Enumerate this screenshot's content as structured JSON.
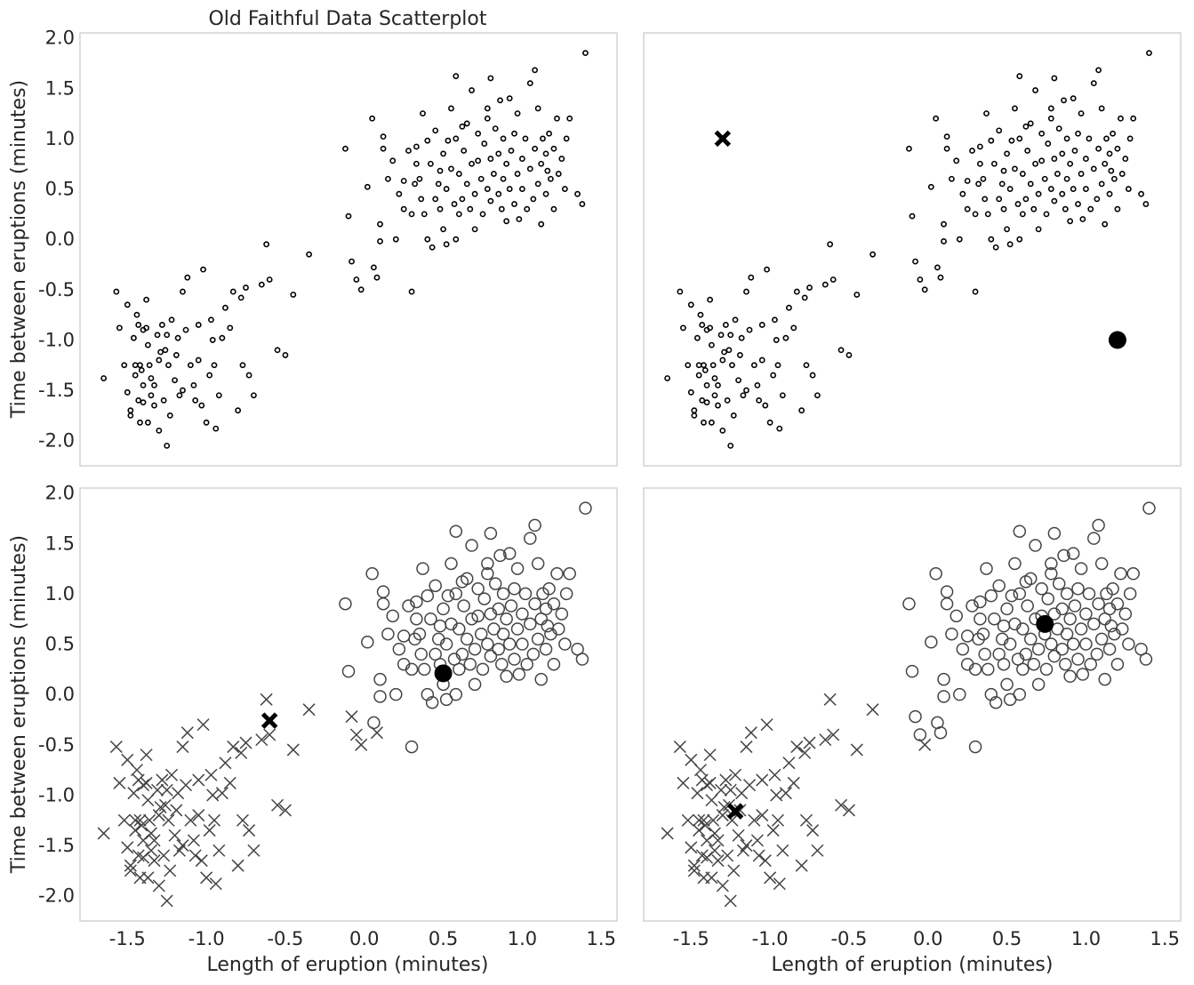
{
  "figure": {
    "title": "Old Faithful Data Scatterplot",
    "xlabel": "Length of eruption (minutes)",
    "ylabel": "Time between eruptions (minutes)"
  },
  "chart_data": [
    {
      "type": "scatter",
      "panel": "top-left",
      "title": "Old Faithful Data Scatterplot",
      "xlabel": "",
      "ylabel": "Time between eruptions (minutes)",
      "xlim": [
        -1.8,
        1.6
      ],
      "ylim": [
        -2.25,
        2.05
      ],
      "xticks": [],
      "yticks": [
        "2.0",
        "1.5",
        "1.0",
        "0.5",
        "0.0",
        "-0.5",
        "-1.0",
        "-1.5",
        "-2.0"
      ],
      "grid": false,
      "series": [
        {
          "marker": "small-circle",
          "points": [
            [
              -1.65,
              -1.38
            ],
            [
              -1.57,
              -0.52
            ],
            [
              -1.55,
              -0.88
            ],
            [
              -1.52,
              -1.25
            ],
            [
              -1.5,
              -0.65
            ],
            [
              -1.5,
              -1.52
            ],
            [
              -1.48,
              -1.7
            ],
            [
              -1.48,
              -1.75
            ],
            [
              -1.46,
              -0.98
            ],
            [
              -1.45,
              -1.25
            ],
            [
              -1.45,
              -1.35
            ],
            [
              -1.44,
              -0.75
            ],
            [
              -1.43,
              -0.85
            ],
            [
              -1.43,
              -1.6
            ],
            [
              -1.42,
              -1.82
            ],
            [
              -1.42,
              -1.25
            ],
            [
              -1.41,
              -1.3
            ],
            [
              -1.4,
              -1.45
            ],
            [
              -1.4,
              -1.62
            ],
            [
              -1.4,
              -0.9
            ],
            [
              -1.38,
              -0.6
            ],
            [
              -1.38,
              -0.88
            ],
            [
              -1.37,
              -1.05
            ],
            [
              -1.37,
              -1.82
            ],
            [
              -1.36,
              -1.25
            ],
            [
              -1.35,
              -1.38
            ],
            [
              -1.35,
              -1.55
            ],
            [
              -1.33,
              -1.45
            ],
            [
              -1.33,
              -1.65
            ],
            [
              -1.31,
              -0.95
            ],
            [
              -1.3,
              -1.2
            ],
            [
              -1.3,
              -1.9
            ],
            [
              -1.29,
              -1.12
            ],
            [
              -1.28,
              -0.85
            ],
            [
              -1.27,
              -1.6
            ],
            [
              -1.26,
              -1.1
            ],
            [
              -1.25,
              -2.05
            ],
            [
              -1.25,
              -0.95
            ],
            [
              -1.24,
              -1.25
            ],
            [
              -1.23,
              -1.75
            ],
            [
              -1.22,
              -0.8
            ],
            [
              -1.2,
              -1.4
            ],
            [
              -1.19,
              -1.15
            ],
            [
              -1.18,
              -0.98
            ],
            [
              -1.17,
              -1.55
            ],
            [
              -1.15,
              -1.5
            ],
            [
              -1.15,
              -0.52
            ],
            [
              -1.13,
              -0.9
            ],
            [
              -1.12,
              -0.38
            ],
            [
              -1.1,
              -1.25
            ],
            [
              -1.08,
              -1.45
            ],
            [
              -1.07,
              -1.6
            ],
            [
              -1.05,
              -0.85
            ],
            [
              -1.05,
              -1.2
            ],
            [
              -1.03,
              -1.65
            ],
            [
              -1.02,
              -0.3
            ],
            [
              -1.0,
              -1.82
            ],
            [
              -0.98,
              -1.35
            ],
            [
              -0.97,
              -0.8
            ],
            [
              -0.96,
              -1.0
            ],
            [
              -0.95,
              -1.25
            ],
            [
              -0.94,
              -1.88
            ],
            [
              -0.92,
              -1.55
            ],
            [
              -0.9,
              -0.98
            ],
            [
              -0.88,
              -0.68
            ],
            [
              -0.85,
              -0.88
            ],
            [
              -0.83,
              -0.52
            ],
            [
              -0.8,
              -1.7
            ],
            [
              -0.78,
              -0.58
            ],
            [
              -0.77,
              -1.25
            ],
            [
              -0.75,
              -0.48
            ],
            [
              -0.73,
              -1.35
            ],
            [
              -0.7,
              -1.55
            ],
            [
              -0.65,
              -0.45
            ],
            [
              -0.62,
              -0.05
            ],
            [
              -0.6,
              -0.4
            ],
            [
              -0.55,
              -1.1
            ],
            [
              -0.5,
              -1.15
            ],
            [
              -0.45,
              -0.55
            ],
            [
              -0.35,
              -0.15
            ],
            [
              -0.12,
              0.9
            ],
            [
              -0.1,
              0.23
            ],
            [
              -0.08,
              -0.22
            ],
            [
              -0.05,
              -0.4
            ],
            [
              -0.02,
              -0.5
            ],
            [
              0.02,
              0.52
            ],
            [
              0.05,
              1.2
            ],
            [
              0.08,
              -0.38
            ],
            [
              0.1,
              0.15
            ],
            [
              0.1,
              -0.02
            ],
            [
              0.12,
              1.02
            ],
            [
              0.12,
              0.9
            ],
            [
              0.15,
              0.6
            ],
            [
              0.18,
              0.78
            ],
            [
              0.2,
              0.0
            ],
            [
              0.22,
              0.45
            ],
            [
              0.25,
              0.58
            ],
            [
              0.25,
              0.3
            ],
            [
              0.28,
              0.88
            ],
            [
              0.3,
              0.25
            ],
            [
              0.3,
              -0.52
            ],
            [
              0.32,
              0.55
            ],
            [
              0.33,
              0.75
            ],
            [
              0.35,
              0.6
            ],
            [
              0.36,
              0.4
            ],
            [
              0.38,
              0.25
            ],
            [
              0.4,
              0.0
            ],
            [
              0.4,
              0.98
            ],
            [
              0.42,
              0.75
            ],
            [
              0.43,
              -0.08
            ],
            [
              0.45,
              0.4
            ],
            [
              0.45,
              1.08
            ],
            [
              0.47,
              0.55
            ],
            [
              0.48,
              0.3
            ],
            [
              0.5,
              0.1
            ],
            [
              0.5,
              0.85
            ],
            [
              0.52,
              0.5
            ],
            [
              0.52,
              -0.05
            ],
            [
              0.53,
              0.98
            ],
            [
              0.55,
              0.7
            ],
            [
              0.55,
              1.3
            ],
            [
              0.57,
              0.35
            ],
            [
              0.58,
              0.0
            ],
            [
              0.58,
              1.0
            ],
            [
              0.6,
              0.65
            ],
            [
              0.6,
              0.25
            ],
            [
              0.62,
              0.4
            ],
            [
              0.63,
              0.88
            ],
            [
              0.65,
              0.55
            ],
            [
              0.65,
              1.15
            ],
            [
              0.67,
              0.3
            ],
            [
              0.68,
              0.75
            ],
            [
              0.68,
              1.48
            ],
            [
              0.7,
              0.45
            ],
            [
              0.7,
              0.1
            ],
            [
              0.72,
              0.78
            ],
            [
              0.72,
              1.05
            ],
            [
              0.74,
              0.6
            ],
            [
              0.75,
              0.25
            ],
            [
              0.76,
              0.95
            ],
            [
              0.78,
              0.5
            ],
            [
              0.78,
              1.3
            ],
            [
              0.8,
              0.8
            ],
            [
              0.8,
              0.38
            ],
            [
              0.82,
              0.65
            ],
            [
              0.83,
              1.1
            ],
            [
              0.85,
              0.45
            ],
            [
              0.85,
              0.85
            ],
            [
              0.87,
              0.3
            ],
            [
              0.88,
              1.0
            ],
            [
              0.88,
              0.6
            ],
            [
              0.9,
              0.18
            ],
            [
              0.9,
              0.75
            ],
            [
              0.92,
              1.4
            ],
            [
              0.92,
              0.5
            ],
            [
              0.93,
              0.88
            ],
            [
              0.95,
              0.35
            ],
            [
              0.95,
              1.05
            ],
            [
              0.97,
              0.65
            ],
            [
              0.97,
              1.25
            ],
            [
              0.98,
              0.2
            ],
            [
              1.0,
              0.8
            ],
            [
              1.0,
              0.5
            ],
            [
              1.02,
              1.0
            ],
            [
              1.03,
              0.3
            ],
            [
              1.05,
              0.7
            ],
            [
              1.05,
              1.55
            ],
            [
              1.07,
              0.4
            ],
            [
              1.08,
              0.9
            ],
            [
              1.1,
              0.55
            ],
            [
              1.1,
              1.3
            ],
            [
              1.12,
              0.15
            ],
            [
              1.12,
              0.75
            ],
            [
              1.13,
              1.0
            ],
            [
              1.15,
              0.45
            ],
            [
              1.15,
              0.85
            ],
            [
              1.17,
              1.05
            ],
            [
              1.18,
              0.6
            ],
            [
              1.2,
              0.3
            ],
            [
              1.2,
              0.9
            ],
            [
              1.22,
              1.2
            ],
            [
              1.23,
              0.65
            ],
            [
              1.25,
              0.8
            ],
            [
              1.27,
              0.5
            ],
            [
              1.28,
              1.0
            ],
            [
              1.3,
              1.2
            ],
            [
              1.35,
              0.45
            ],
            [
              1.38,
              0.35
            ],
            [
              1.4,
              1.85
            ],
            [
              0.37,
              1.25
            ],
            [
              0.8,
              1.6
            ],
            [
              1.08,
              1.68
            ],
            [
              0.58,
              1.62
            ],
            [
              0.33,
              0.92
            ],
            [
              0.78,
              1.2
            ],
            [
              0.86,
              1.38
            ],
            [
              1.16,
              0.68
            ],
            [
              0.06,
              -0.28
            ],
            [
              0.48,
              0.68
            ],
            [
              0.62,
              1.12
            ]
          ]
        }
      ]
    },
    {
      "type": "scatter",
      "panel": "top-right",
      "title": "",
      "xlabel": "",
      "ylabel": "",
      "xlim": [
        -1.8,
        1.6
      ],
      "ylim": [
        -2.25,
        2.05
      ],
      "xticks": [],
      "yticks": [],
      "grid": false,
      "series": [
        {
          "marker": "small-circle",
          "points": "same as top-left"
        },
        {
          "marker": "x-centroid",
          "points": [
            [
              -1.3,
              1.0
            ]
          ]
        },
        {
          "marker": "circle-centroid",
          "points": [
            [
              1.2,
              -1.0
            ]
          ]
        }
      ]
    },
    {
      "type": "scatter",
      "panel": "bottom-left",
      "title": "",
      "xlabel": "Length of eruption (minutes)",
      "ylabel": "Time between eruptions (minutes)",
      "xlim": [
        -1.8,
        1.6
      ],
      "ylim": [
        -2.25,
        2.05
      ],
      "xticks": [
        "-1.5",
        "-1.0",
        "-0.5",
        "0.0",
        "0.5",
        "1.0",
        "1.5"
      ],
      "yticks": [
        "2.0",
        "1.5",
        "1.0",
        "0.5",
        "0.0",
        "-0.5",
        "-1.0",
        "-1.5",
        "-2.0"
      ],
      "grid": false,
      "series": [
        {
          "marker": "x",
          "rule": "closer to x-centroid"
        },
        {
          "marker": "open-circle",
          "rule": "closer to circle-centroid"
        },
        {
          "marker": "x-centroid",
          "points": [
            [
              -0.6,
              -0.26
            ]
          ]
        },
        {
          "marker": "circle-centroid",
          "points": [
            [
              0.5,
              0.21
            ]
          ]
        }
      ]
    },
    {
      "type": "scatter",
      "panel": "bottom-right",
      "title": "",
      "xlabel": "Length of eruption (minutes)",
      "ylabel": "",
      "xlim": [
        -1.8,
        1.6
      ],
      "ylim": [
        -2.25,
        2.05
      ],
      "xticks": [
        "-1.5",
        "-1.0",
        "-0.5",
        "0.0",
        "0.5",
        "1.0",
        "1.5"
      ],
      "yticks": [],
      "grid": false,
      "series": [
        {
          "marker": "x",
          "rule": "closer to x-centroid"
        },
        {
          "marker": "open-circle",
          "rule": "closer to circle-centroid"
        },
        {
          "marker": "x-centroid",
          "points": [
            [
              -1.22,
              -1.16
            ]
          ]
        },
        {
          "marker": "circle-centroid",
          "points": [
            [
              0.74,
              0.7
            ]
          ]
        }
      ]
    }
  ],
  "colors": {
    "marker": "#000000",
    "marker_soft": "#444444",
    "frame": "#cccccc",
    "text": "#262626"
  }
}
